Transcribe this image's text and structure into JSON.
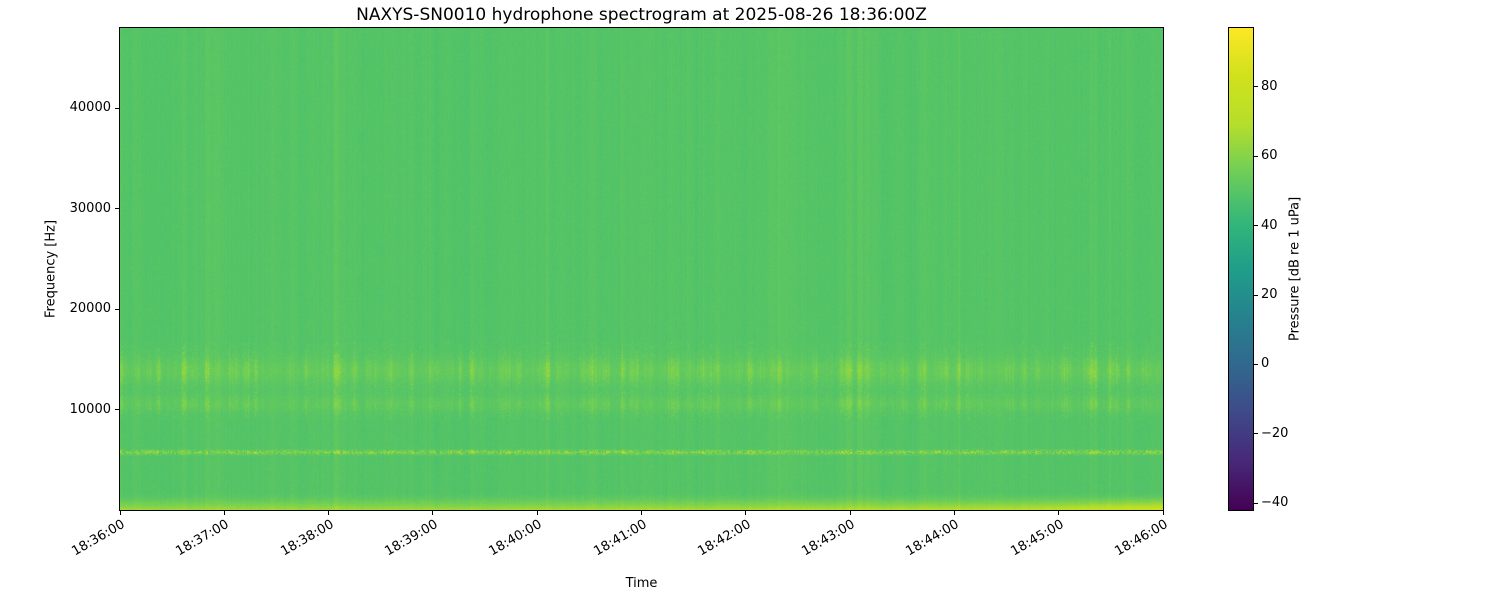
{
  "chart_data": {
    "type": "heatmap",
    "title": "NAXYS-SN0010 hydrophone spectrogram at 2025-08-26 18:36:00Z",
    "xlabel": "Time",
    "ylabel": "Frequency [Hz]",
    "colorbar_label": "Pressure [dB re 1 uPa]",
    "x_tick_labels": [
      "18:36:00",
      "18:37:00",
      "18:38:00",
      "18:39:00",
      "18:40:00",
      "18:41:00",
      "18:42:00",
      "18:43:00",
      "18:44:00",
      "18:45:00",
      "18:46:00"
    ],
    "y_tick_values": [
      10000,
      20000,
      30000,
      40000
    ],
    "colorbar_tick_values": [
      80,
      60,
      40,
      20,
      0,
      -20,
      -40
    ],
    "ylim": [
      0,
      48000
    ],
    "time_span_seconds": 600,
    "clim": [
      -42,
      97
    ],
    "colormap": "viridis",
    "colormap_stops": [
      "#440154",
      "#482878",
      "#3e4989",
      "#31688e",
      "#26828e",
      "#1f9e89",
      "#35b779",
      "#6ece58",
      "#b5de2b",
      "#d0e11c",
      "#fde725"
    ],
    "background_level_db": 49.3,
    "features": [
      {
        "name": "tonal-band",
        "freq_hz": [
          5400,
          6200
        ],
        "level_db": [
          55,
          85
        ],
        "description": "intermittent bright speckled tonal line across entire record"
      },
      {
        "name": "mid-band-lower",
        "freq_hz": [
          9800,
          11500
        ],
        "level_db": [
          52,
          62
        ],
        "description": "elevated broadband noise with vertical streaks"
      },
      {
        "name": "mid-band-upper",
        "freq_hz": [
          12500,
          15800
        ],
        "level_db": [
          54,
          70
        ],
        "description": "brighter speckled band with vertical streaks"
      },
      {
        "name": "low-frequency-band",
        "freq_hz": [
          0,
          1900
        ],
        "level_db": [
          60,
          83
        ],
        "description": "bright band along bottom edge, intensifying toward 18:46:00"
      },
      {
        "name": "vertical-striping",
        "freq_hz": [
          0,
          48000
        ],
        "level_db": [
          46,
          54
        ],
        "description": "faint full-height column-to-column level variation"
      }
    ],
    "seed": 1337
  }
}
